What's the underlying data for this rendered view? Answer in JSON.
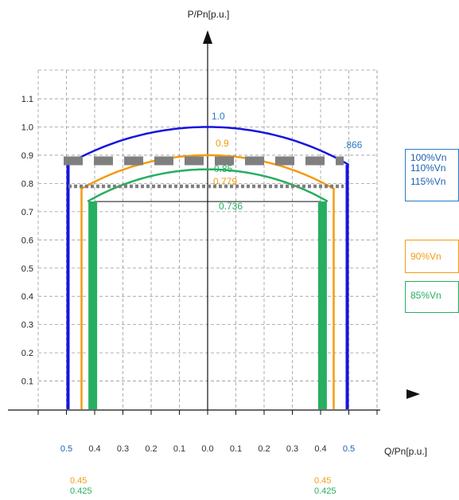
{
  "chart_data": {
    "type": "line",
    "ylabel": "P/Pn[p.u.]",
    "xlabel": "Q/Pn[p.u.]",
    "y_ticks": [
      "0.1",
      "0.2",
      "0.3",
      "0.4",
      "0.5",
      "0.6",
      "0.7",
      "0.8",
      "0.9",
      "1.0",
      "1.1"
    ],
    "x_tick_labels": [
      {
        "q": -0.5,
        "label": "0.5",
        "color": "#1a5fb4"
      },
      {
        "q": -0.4,
        "label": "0.4",
        "color": "#333333"
      },
      {
        "q": -0.3,
        "label": "0.3",
        "color": "#333333"
      },
      {
        "q": -0.2,
        "label": "0.2",
        "color": "#333333"
      },
      {
        "q": -0.1,
        "label": "0.1",
        "color": "#333333"
      },
      {
        "q": 0.0,
        "label": "0.0",
        "color": "#333333"
      },
      {
        "q": 0.1,
        "label": "0.1",
        "color": "#333333"
      },
      {
        "q": 0.2,
        "label": "0.2",
        "color": "#333333"
      },
      {
        "q": 0.3,
        "label": "0.3",
        "color": "#333333"
      },
      {
        "q": 0.4,
        "label": "0.4",
        "color": "#333333"
      },
      {
        "q": 0.5,
        "label": "0.5",
        "color": "#1a5fb4"
      }
    ],
    "xlim": [
      -0.62,
      0.62
    ],
    "ylim": [
      0,
      1.2
    ],
    "grid": true,
    "series": [
      {
        "name": "100%Vn",
        "color": "#1515e0",
        "q_limit": 0.5,
        "p_top": 1.0,
        "p_corner": 0.866
      },
      {
        "name": "90%Vn",
        "color": "#f39c12",
        "q_limit": 0.45,
        "p_top": 0.9,
        "p_corner": 0.779
      },
      {
        "name": "85%Vn",
        "color": "#27ae60",
        "q_limit": 0.425,
        "p_top": 0.85,
        "p_corner": 0.736
      }
    ],
    "dashed_lines": [
      {
        "p": 0.88,
        "color": "#7f7f7f",
        "style": "long-dash"
      },
      {
        "p": 0.79,
        "color": "#7f7f7f",
        "style": "dotted"
      }
    ],
    "point_labels": [
      {
        "text": "1.0",
        "q": 0.0,
        "p": 1.0,
        "color": "#2a7ac7"
      },
      {
        "text": ".866",
        "q": 0.5,
        "p": 0.866,
        "color": "#2a7ac7"
      },
      {
        "text": "0.9",
        "q": 0.0,
        "p": 0.9,
        "color": "#f39c12"
      },
      {
        "text": "0.85",
        "q": 0.0,
        "p": 0.85,
        "color": "#27ae60"
      },
      {
        "text": "0.779",
        "q": 0.0,
        "p": 0.779,
        "color": "#f39c12"
      },
      {
        "text": "0.736",
        "q": 0.0,
        "p": 0.736,
        "color": "#27ae60"
      }
    ],
    "bottom_labels": [
      {
        "text": "0.45",
        "q": -0.45,
        "color": "#f39c12"
      },
      {
        "text": "0.425",
        "q": -0.425,
        "color": "#27ae60"
      },
      {
        "text": "0.45",
        "q": 0.45,
        "color": "#f39c12"
      },
      {
        "text": "0.425",
        "q": 0.425,
        "color": "#27ae60"
      }
    ],
    "legend": [
      {
        "group": 1,
        "entries": [
          "100%Vn",
          "110%Vn",
          "115%Vn"
        ],
        "color": "#1a5fb4"
      },
      {
        "group": 2,
        "entries": [
          "90%Vn"
        ],
        "color": "#f39c12"
      },
      {
        "group": 3,
        "entries": [
          "85%Vn"
        ],
        "color": "#27ae60"
      }
    ]
  }
}
